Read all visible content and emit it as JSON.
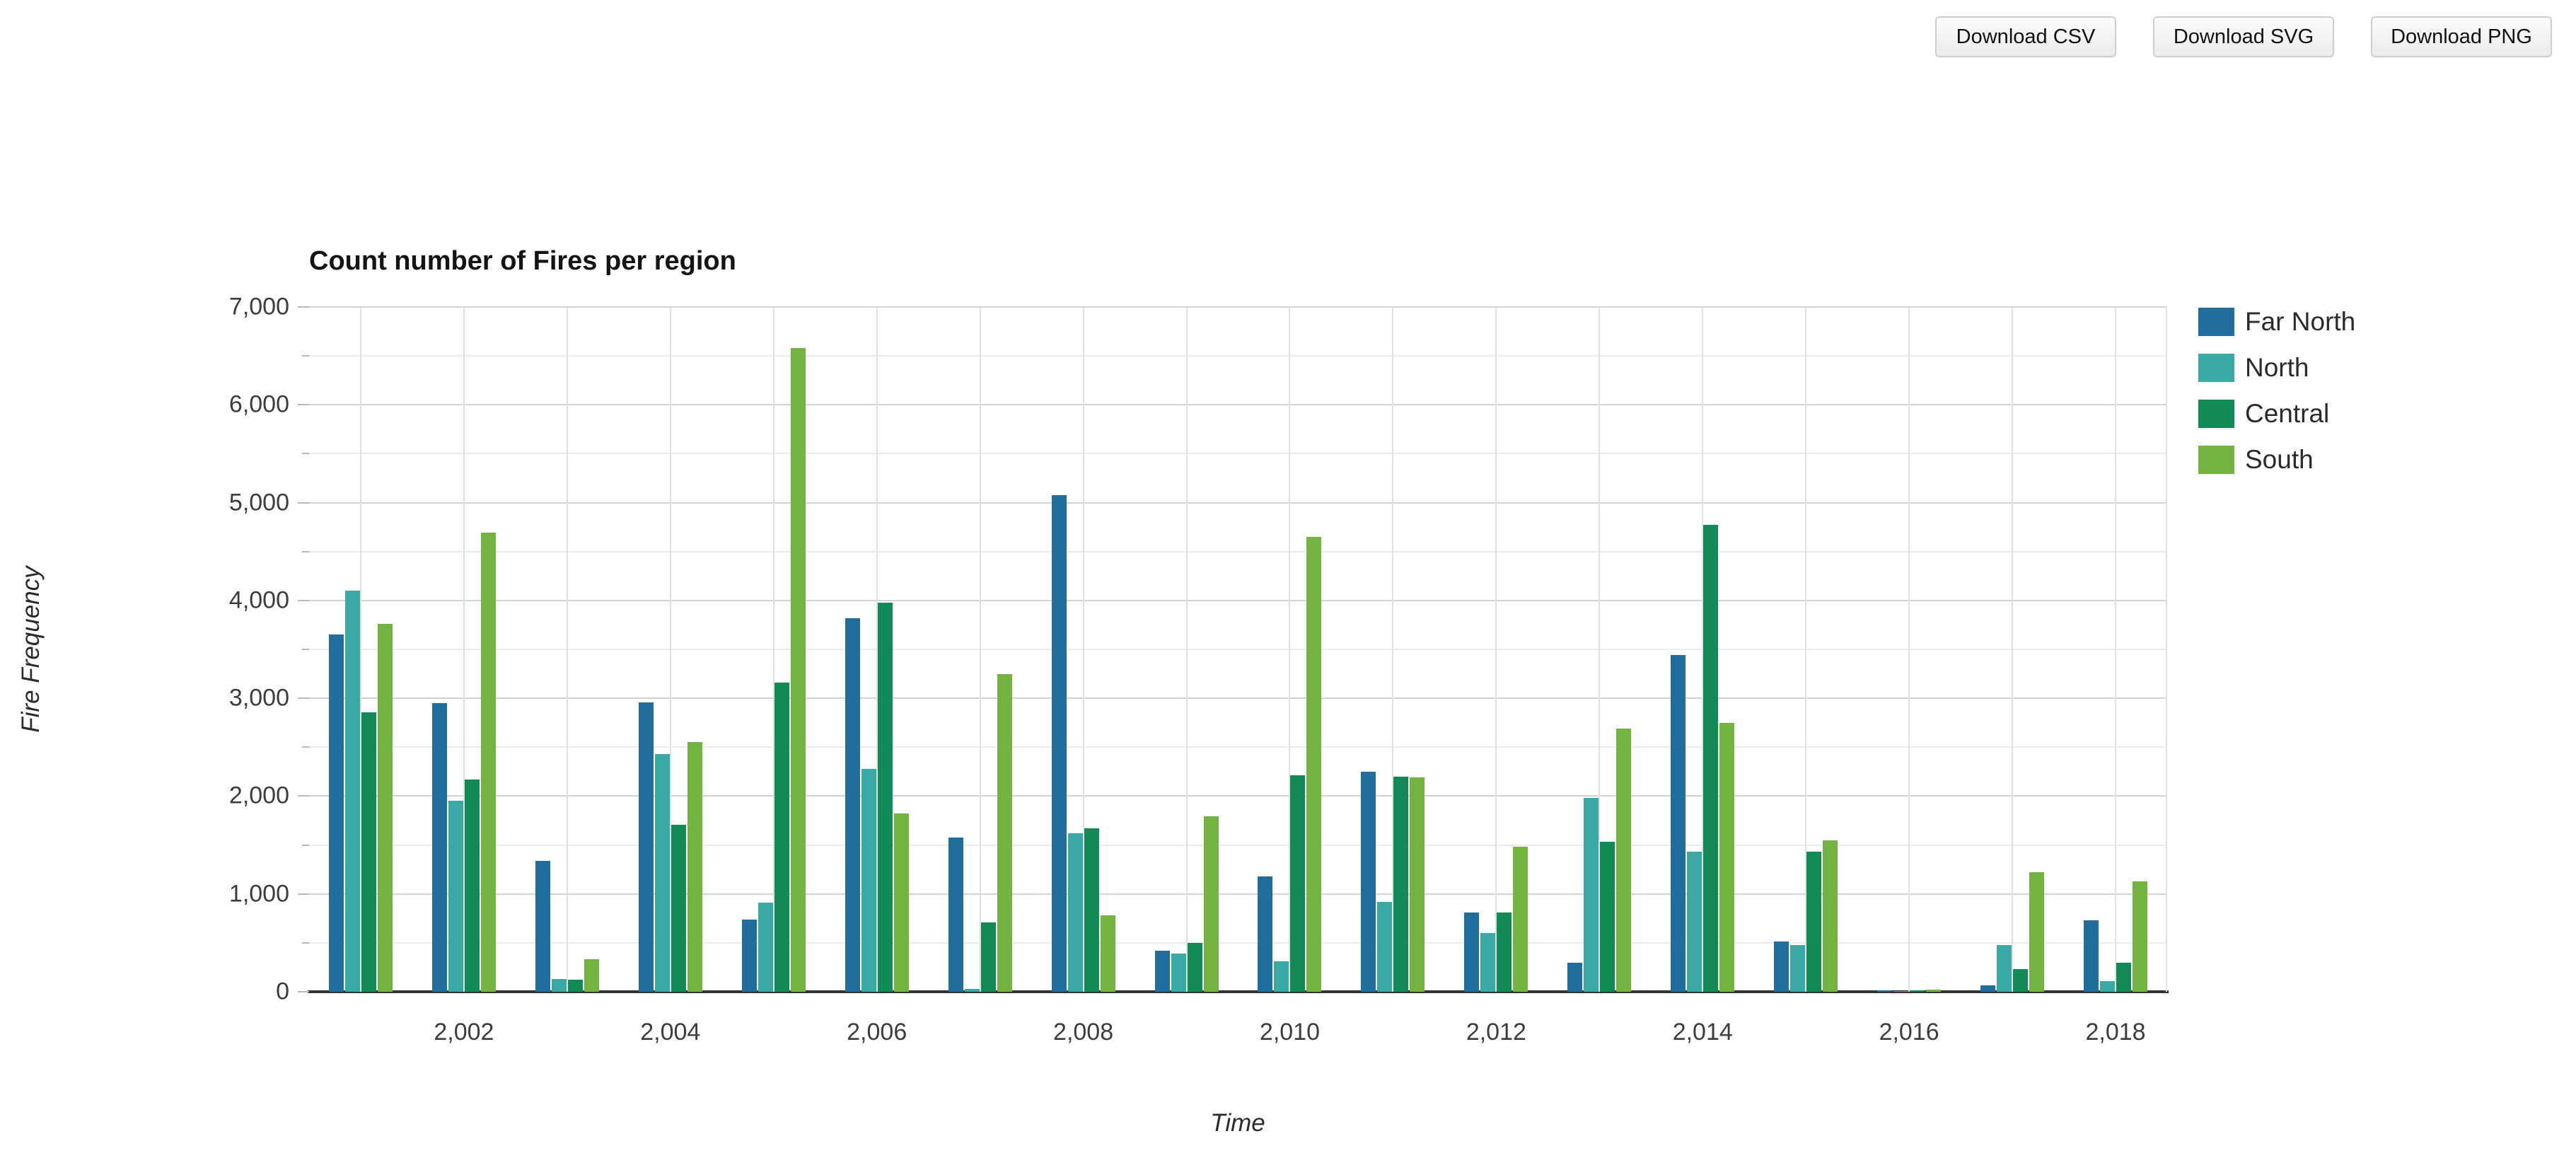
{
  "toolbar": {
    "buttons": [
      {
        "label": "Download CSV"
      },
      {
        "label": "Download SVG"
      },
      {
        "label": "Download PNG"
      }
    ]
  },
  "chart_data": {
    "type": "bar",
    "title": "Count number of Fires per region",
    "xlabel": "Time",
    "ylabel": "Fire Frequency",
    "ylim": [
      0,
      7000
    ],
    "y_major_step": 1000,
    "y_minor_step": 500,
    "grid": true,
    "legend_position": "right",
    "categories": [
      2001,
      2002,
      2003,
      2004,
      2005,
      2006,
      2007,
      2008,
      2009,
      2010,
      2011,
      2012,
      2013,
      2014,
      2015,
      2016,
      2017,
      2018
    ],
    "x_labeled_ticks": [
      2002,
      2004,
      2006,
      2008,
      2010,
      2012,
      2014,
      2016,
      2018
    ],
    "series": [
      {
        "name": "Far North",
        "color": "#206e9e",
        "values": [
          3650,
          2950,
          1340,
          2960,
          740,
          3820,
          1580,
          5080,
          420,
          1180,
          2250,
          810,
          300,
          3440,
          510,
          15,
          65,
          730
        ]
      },
      {
        "name": "North",
        "color": "#3aa8a5",
        "values": [
          4100,
          1950,
          130,
          2430,
          910,
          2280,
          30,
          1620,
          390,
          310,
          920,
          600,
          1980,
          1430,
          480,
          8,
          480,
          110
        ]
      },
      {
        "name": "Central",
        "color": "#118a55",
        "values": [
          2860,
          2170,
          120,
          1710,
          3160,
          3980,
          710,
          1670,
          500,
          2210,
          2200,
          810,
          1530,
          4770,
          1430,
          15,
          230,
          300
        ]
      },
      {
        "name": "South",
        "color": "#72b342",
        "values": [
          3760,
          4690,
          330,
          2550,
          6580,
          1820,
          3250,
          780,
          1790,
          4650,
          2190,
          1480,
          2690,
          2750,
          1550,
          20,
          1220,
          1130
        ]
      }
    ]
  }
}
